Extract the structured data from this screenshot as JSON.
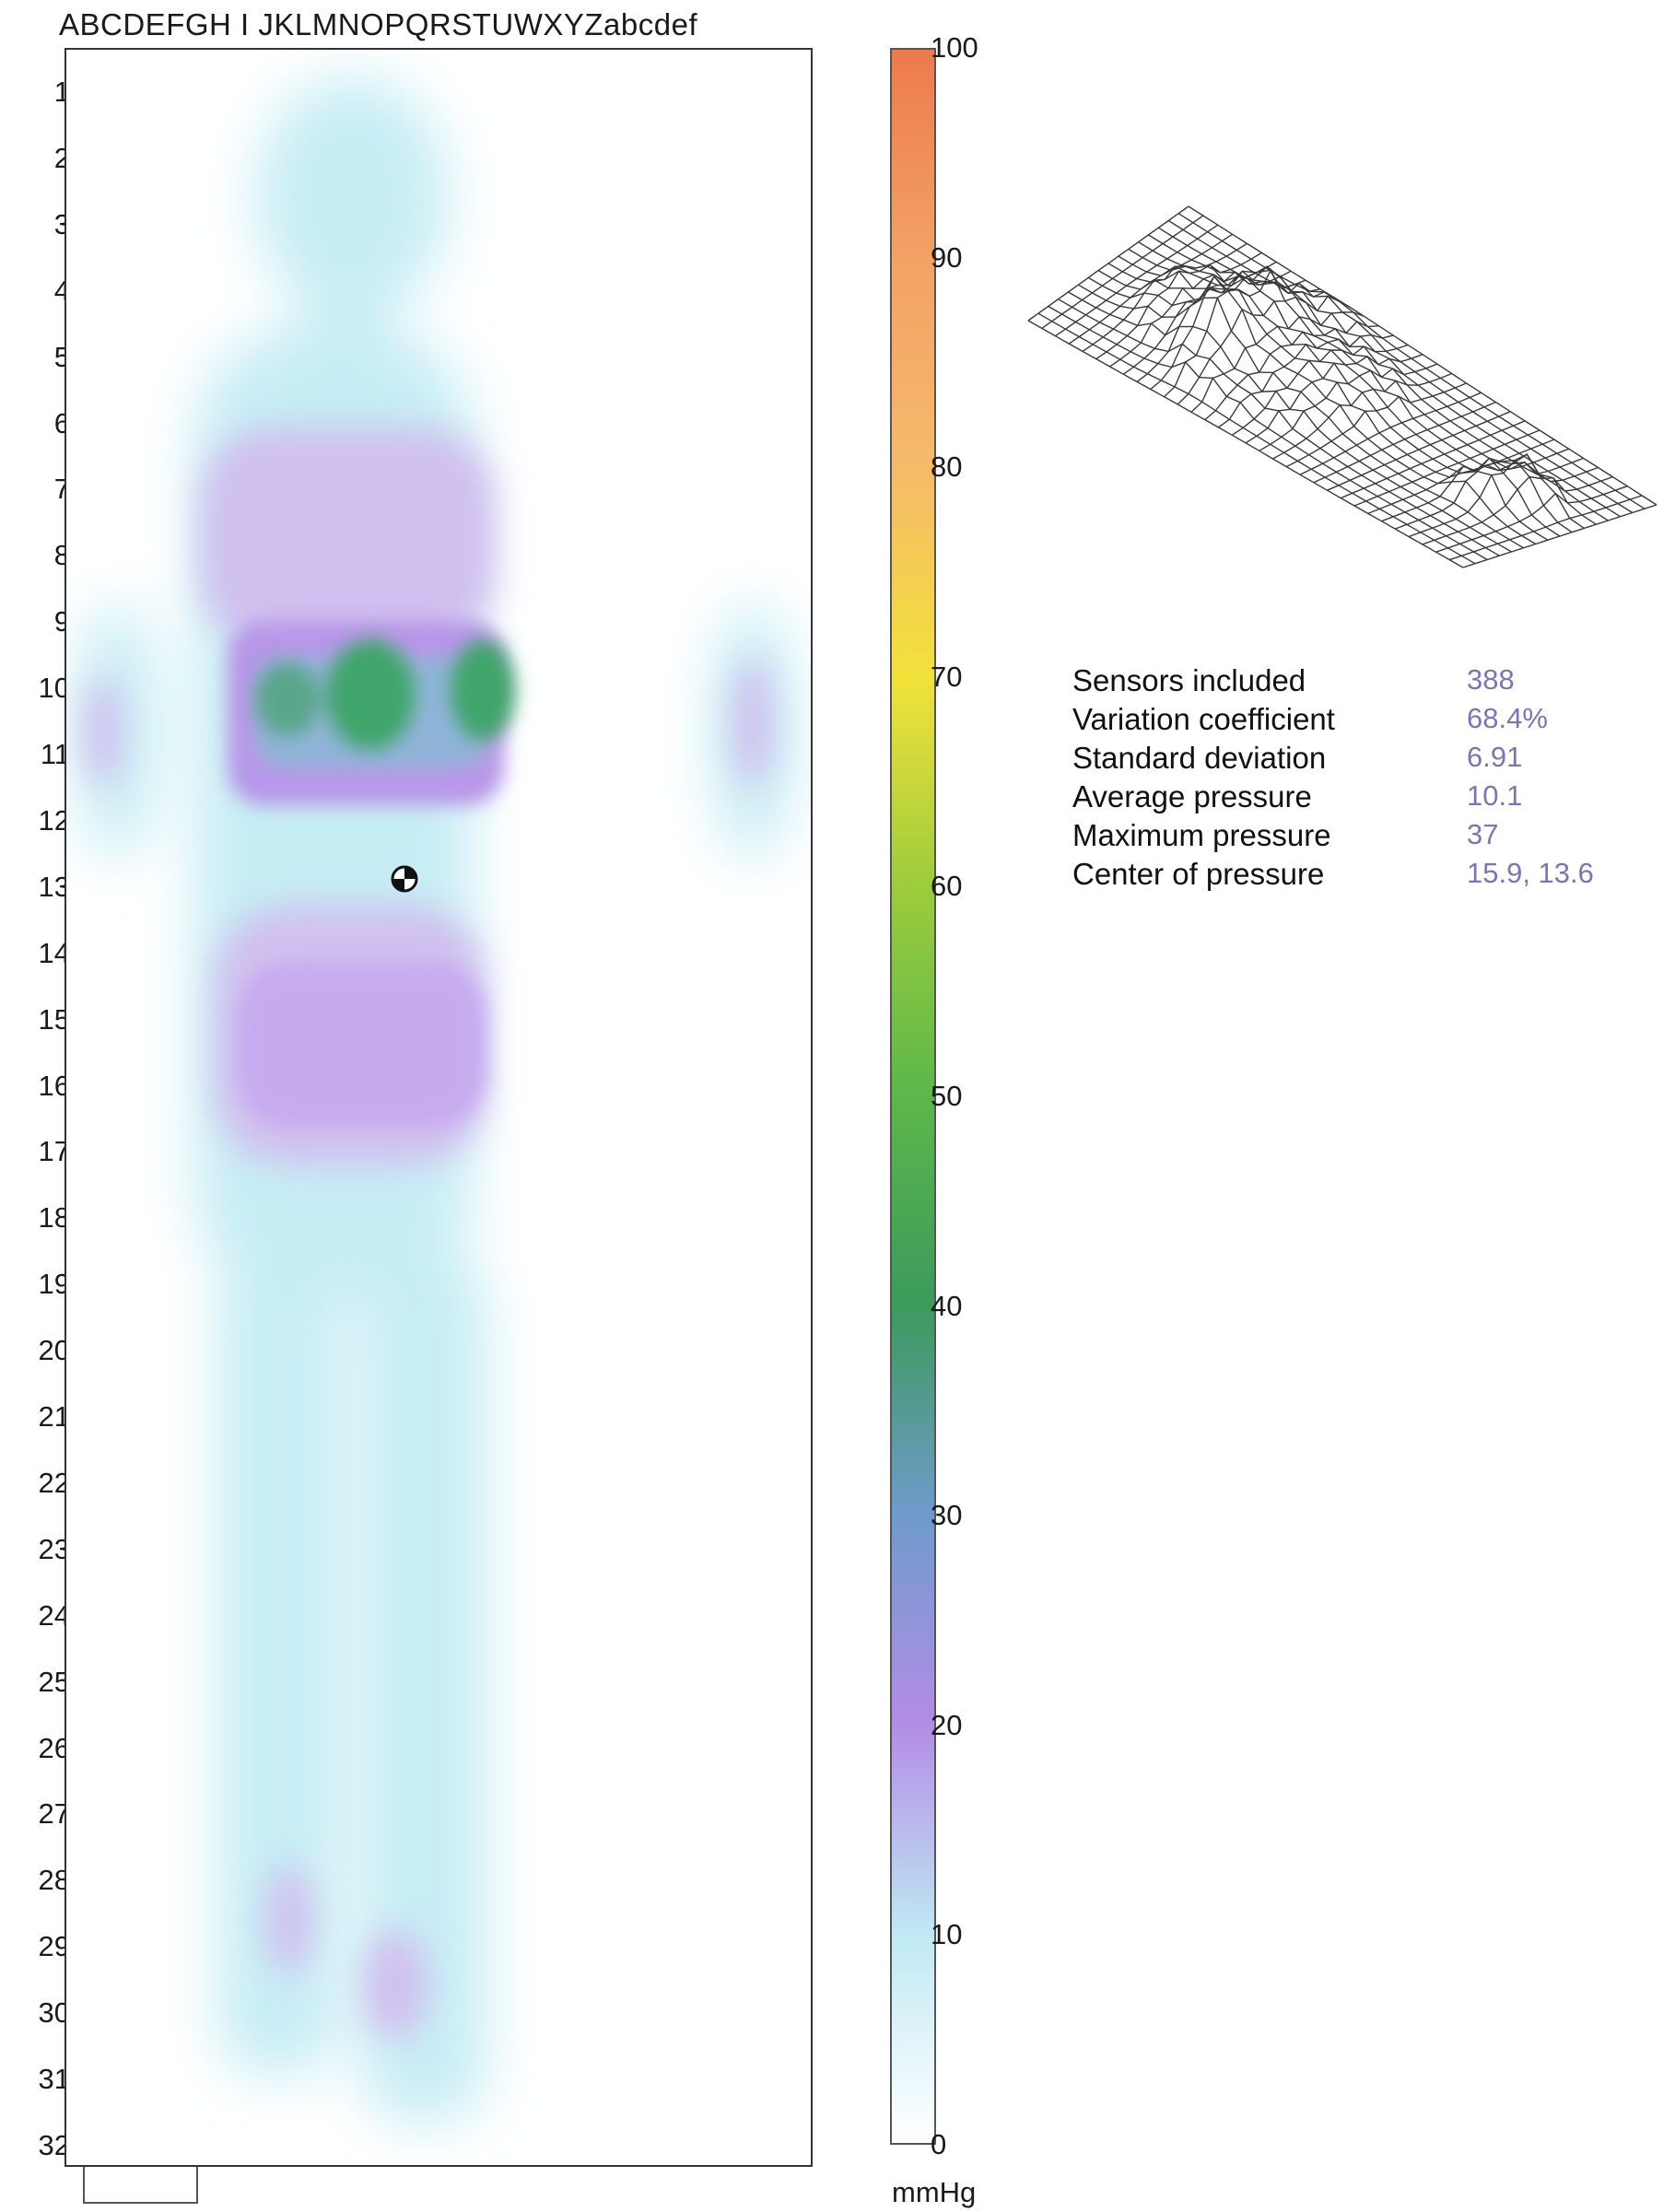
{
  "pressure_map": {
    "columns_label": "ABCDEFGH I JKLMNOPQRSTUWXYZabcdef",
    "rows": [
      "1",
      "2",
      "3",
      "4",
      "5",
      "6",
      "7",
      "8",
      "9",
      "10",
      "11",
      "12",
      "13",
      "14",
      "15",
      "16",
      "17",
      "18",
      "19",
      "20",
      "21",
      "22",
      "23",
      "24",
      "25",
      "26",
      "27",
      "28",
      "29",
      "30",
      "31",
      "32"
    ]
  },
  "chart_data": {
    "type": "heatmap",
    "title": "",
    "colorbar": {
      "unit": "mmHg",
      "min": 0,
      "max": 100,
      "ticks": [
        "100",
        "90",
        "80",
        "70",
        "60",
        "50",
        "40",
        "30",
        "20",
        "10",
        "0"
      ],
      "stops": [
        {
          "value": 0,
          "color": "#ffffff"
        },
        {
          "value": 10,
          "color": "#bfe9f3"
        },
        {
          "value": 20,
          "color": "#b38ce6"
        },
        {
          "value": 30,
          "color": "#6f9bcc"
        },
        {
          "value": 40,
          "color": "#3c9a5c"
        },
        {
          "value": 50,
          "color": "#5cb74a"
        },
        {
          "value": 60,
          "color": "#9ccc3c"
        },
        {
          "value": 70,
          "color": "#f2e23a"
        },
        {
          "value": 80,
          "color": "#f6ba6a"
        },
        {
          "value": 90,
          "color": "#f3a266"
        },
        {
          "value": 100,
          "color": "#ec7a4d"
        }
      ]
    },
    "center_of_pressure": [
      15.9,
      13.6
    ],
    "statistics": [
      {
        "label": "Sensors included",
        "value": "388"
      },
      {
        "label": "Variation coefficient",
        "value": "68.4%"
      },
      {
        "label": "Standard deviation",
        "value": "6.91"
      },
      {
        "label": "Average pressure",
        "value": "10.1"
      },
      {
        "label": "Maximum pressure",
        "value": "37"
      },
      {
        "label": "Center of pressure",
        "value": "15.9, 13.6"
      }
    ]
  }
}
